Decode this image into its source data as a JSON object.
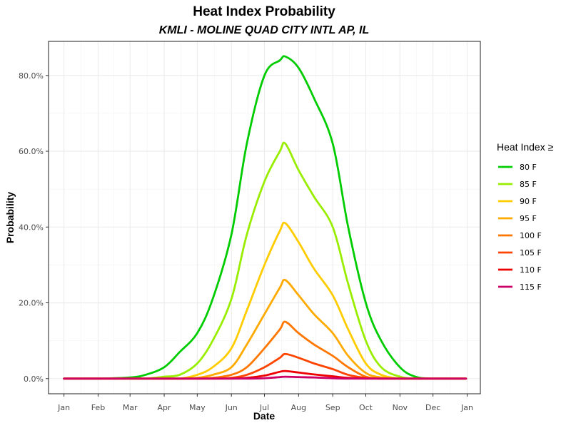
{
  "chart_data": {
    "type": "line",
    "title": "Heat Index Probability",
    "subtitle": "KMLI - MOLINE QUAD CITY INTL AP, IL",
    "xlabel": "Date",
    "ylabel": "Probability",
    "x_ticks": [
      "Jan",
      "Feb",
      "Mar",
      "Apr",
      "May",
      "Jun",
      "Jul",
      "Aug",
      "Sep",
      "Oct",
      "Nov",
      "Dec",
      "Jan"
    ],
    "y_ticks": [
      "0.0%",
      "20.0%",
      "40.0%",
      "60.0%",
      "80.0%"
    ],
    "y_tick_values": [
      0,
      20,
      40,
      60,
      80
    ],
    "ylim": [
      -4,
      89
    ],
    "xlim": [
      "2015-12-18",
      "2017-01-13"
    ],
    "grid": true,
    "legend_title": "Heat Index ≥",
    "legend_position": "right",
    "x": [
      "2016-01-01",
      "2016-02-01",
      "2016-03-01",
      "2016-03-15",
      "2016-04-01",
      "2016-04-15",
      "2016-05-01",
      "2016-05-15",
      "2016-06-01",
      "2016-06-15",
      "2016-07-01",
      "2016-07-15",
      "2016-07-20",
      "2016-08-01",
      "2016-08-15",
      "2016-09-01",
      "2016-09-15",
      "2016-10-01",
      "2016-10-15",
      "2016-11-01",
      "2016-11-15",
      "2016-12-01",
      "2016-12-31"
    ],
    "series": [
      {
        "name": "80 F",
        "color": "#00CC00",
        "values": [
          0,
          0,
          0.3,
          1,
          3,
          7,
          12,
          21,
          38,
          62,
          80,
          84,
          85,
          82,
          74,
          62,
          40,
          20,
          10,
          3,
          0.5,
          0,
          0
        ]
      },
      {
        "name": "85 F",
        "color": "#99EE00",
        "values": [
          0,
          0,
          0,
          0,
          0.5,
          1,
          4,
          10,
          21,
          38,
          52,
          60,
          62,
          55,
          48,
          40,
          25,
          10,
          3,
          0.5,
          0,
          0,
          0
        ]
      },
      {
        "name": "90 F",
        "color": "#FFCC00",
        "values": [
          0,
          0,
          0,
          0,
          0,
          0,
          1,
          3,
          8,
          18,
          30,
          39,
          41,
          36,
          29,
          22,
          13,
          4,
          1,
          0,
          0,
          0,
          0
        ]
      },
      {
        "name": "95 F",
        "color": "#FFAA00",
        "values": [
          0,
          0,
          0,
          0,
          0,
          0,
          0.2,
          1,
          3,
          9,
          17,
          24,
          26,
          22,
          17,
          12,
          6,
          1.5,
          0.3,
          0,
          0,
          0,
          0
        ]
      },
      {
        "name": "100 F",
        "color": "#FF7700",
        "values": [
          0,
          0,
          0,
          0,
          0,
          0,
          0,
          0.2,
          1,
          3,
          8,
          13,
          15,
          12,
          9,
          6,
          3,
          0.5,
          0,
          0,
          0,
          0,
          0
        ]
      },
      {
        "name": "105 F",
        "color": "#FF4400",
        "values": [
          0,
          0,
          0,
          0,
          0,
          0,
          0,
          0,
          0.2,
          1,
          3,
          5.5,
          6.5,
          5.5,
          4,
          2.5,
          1,
          0.2,
          0,
          0,
          0,
          0,
          0
        ]
      },
      {
        "name": "110 F",
        "color": "#EE0000",
        "values": [
          0,
          0,
          0,
          0,
          0,
          0,
          0,
          0,
          0,
          0.2,
          0.8,
          1.8,
          2,
          1.6,
          1.1,
          0.6,
          0.2,
          0,
          0,
          0,
          0,
          0,
          0
        ]
      },
      {
        "name": "115 F",
        "color": "#CC0066",
        "values": [
          0,
          0,
          0,
          0,
          0,
          0,
          0,
          0,
          0,
          0,
          0.1,
          0.4,
          0.5,
          0.4,
          0.3,
          0.1,
          0,
          0,
          0,
          0,
          0,
          0,
          0
        ]
      }
    ]
  }
}
